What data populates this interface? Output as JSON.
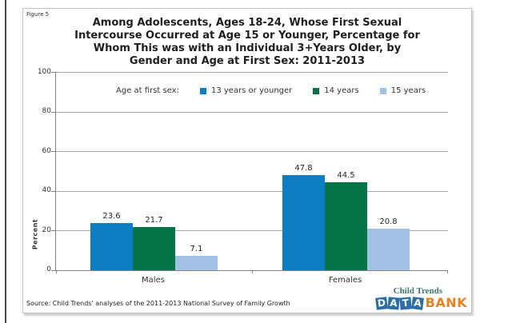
{
  "figure_label": "Figure 5",
  "title": {
    "lines": [
      "Among Adolescents, Ages 18-24, Whose First Sexual",
      "Intercourse Occurred at Age 15 or Younger, Percentage for",
      "Whom This was with an Individual 3+Years Older, by",
      "Gender and Age at First Sex: 2011-2013"
    ]
  },
  "legend": {
    "label": "Age at first sex:",
    "items": [
      {
        "label": "13 years or younger",
        "color": "#0e7dc1"
      },
      {
        "label": "14 years",
        "color": "#067449"
      },
      {
        "label": "15 years",
        "color": "#a3c1e5"
      }
    ]
  },
  "y_axis": {
    "label": "Percent",
    "ticks": [
      "100",
      "80",
      "60",
      "40",
      "20",
      "0"
    ]
  },
  "source": "Source: Child Trends' analyses of the 2011-2013 National Survey of Family Growth",
  "logo": {
    "top_text": "Child Trends",
    "data_letters": [
      "D",
      "A",
      "T",
      "A"
    ],
    "bank_text": "BANK",
    "top_color": "#41796a",
    "tile_color": "#2e6da4",
    "bank_color": "#e8821e"
  },
  "chart_data": {
    "type": "bar",
    "categories": [
      "Males",
      "Females"
    ],
    "series": [
      {
        "name": "13 years or younger",
        "color": "#0e7dc1",
        "values": [
          23.6,
          47.8
        ]
      },
      {
        "name": "14 years",
        "color": "#067449",
        "values": [
          21.7,
          44.5
        ]
      },
      {
        "name": "15 years",
        "color": "#a3c1e5",
        "values": [
          7.1,
          20.8
        ]
      }
    ],
    "title": "Among Adolescents, Ages 18-24, Whose First Sexual Intercourse Occurred at Age 15 or Younger, Percentage for Whom This was with an Individual 3+Years Older, by Gender and Age at First Sex: 2011-2013",
    "xlabel": "",
    "ylabel": "Percent",
    "ylim": [
      0,
      100
    ],
    "grid": true,
    "gridline_step": 20,
    "legend_position": "top",
    "value_labels": true
  }
}
